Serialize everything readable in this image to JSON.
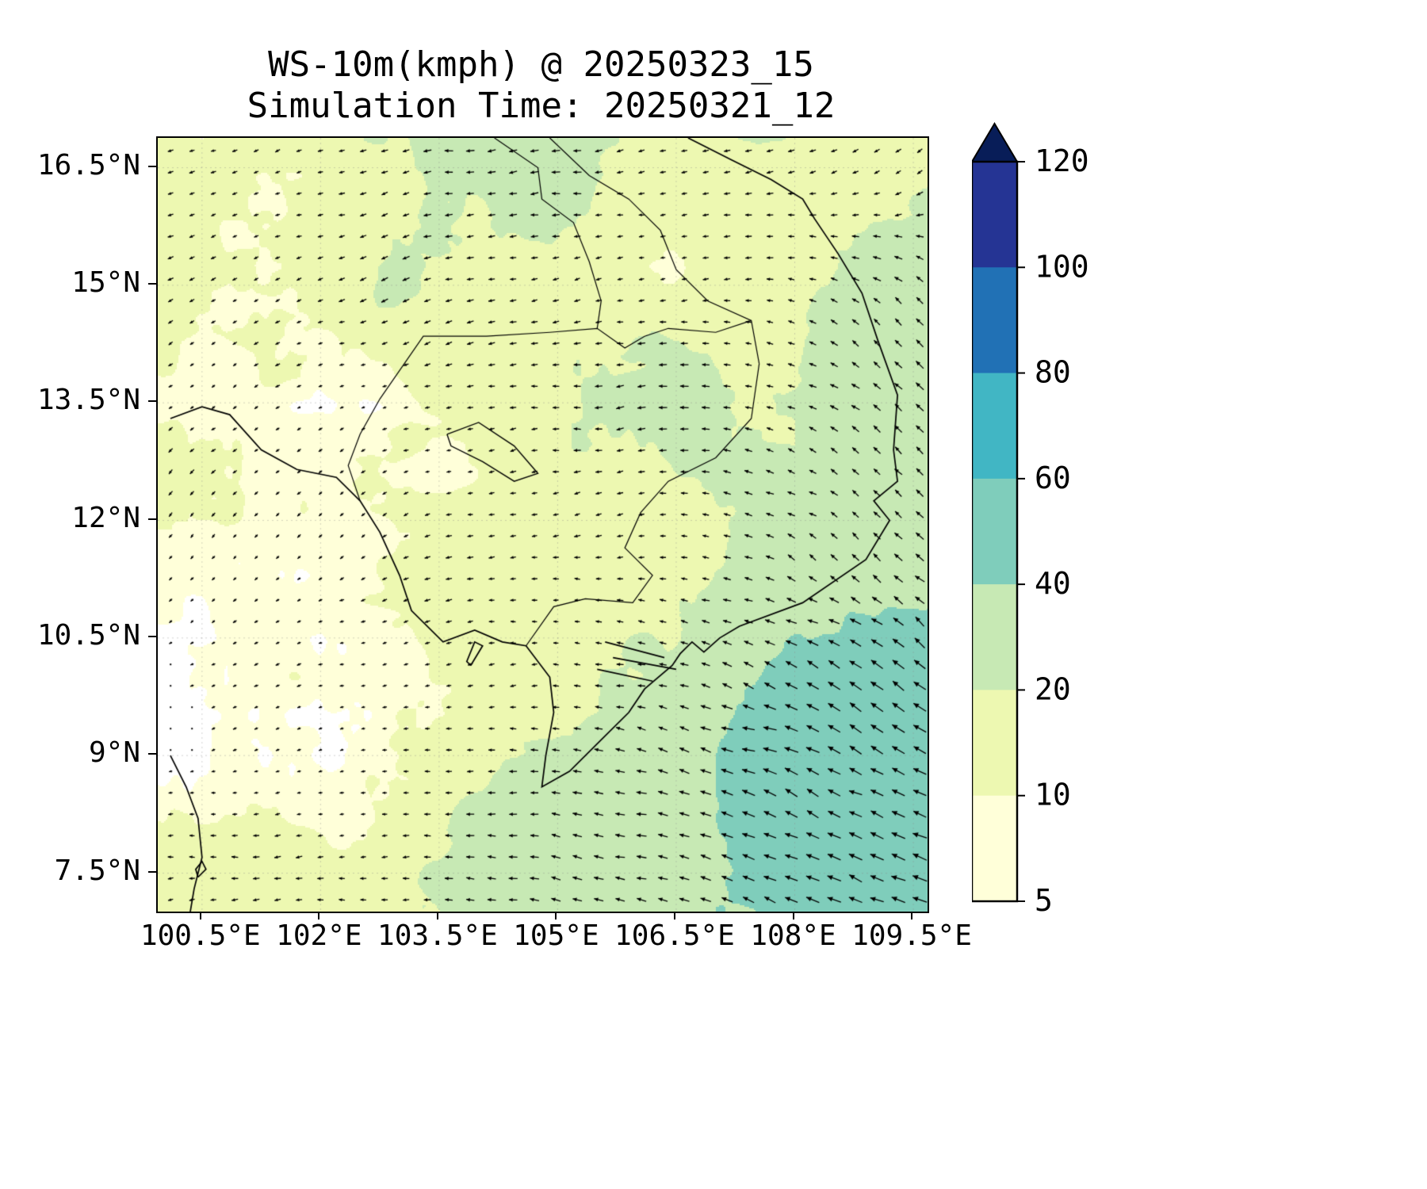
{
  "title": {
    "line1": "WS-10m(kmph) @ 20250323_15",
    "line2": "Simulation Time: 20250321_12"
  },
  "chart_data": {
    "type": "heatmap",
    "title": "WS-10m(kmph) @ 20250323_15",
    "subtitle": "Simulation Time: 20250321_12",
    "variable": "WS-10m",
    "units": "kmph",
    "valid_datetime_label": "20250323_15",
    "simulation_datetime_label": "20250321_12",
    "grid_on": true,
    "x_axis": {
      "tick_labels": [
        "100.5°E",
        "102°E",
        "103.5°E",
        "105°E",
        "106.5°E",
        "108°E",
        "109.5°E"
      ],
      "tick_lons": [
        100.5,
        102,
        103.5,
        105,
        106.5,
        108,
        109.5
      ],
      "range": [
        99.94,
        109.68
      ]
    },
    "y_axis": {
      "tick_labels": [
        "16.5°N",
        "15°N",
        "13.5°N",
        "12°N",
        "10.5°N",
        "9°N",
        "7.5°N"
      ],
      "tick_lats": [
        16.5,
        15,
        13.5,
        12,
        10.5,
        9,
        7.5
      ],
      "range": [
        7.01,
        16.88
      ]
    },
    "colorbar": {
      "position": "right",
      "tick_labels": [
        "5",
        "10",
        "20",
        "40",
        "60",
        "80",
        "100",
        "120"
      ],
      "levels": [
        5,
        10,
        20,
        40,
        60,
        80,
        100,
        120
      ],
      "interval_colors": [
        "#ffffd9",
        "#edf8b1",
        "#c7e9b4",
        "#7fcdbb",
        "#41b6c4",
        "#2171b5",
        "#253494"
      ],
      "extend_max_color": "#081d58",
      "below_min_color": "#ffffff",
      "outline_color": "#000000"
    },
    "wind_speed_grid_kmph": {
      "lons": [
        100.5,
        102,
        103.5,
        105,
        106.5,
        108,
        109.5
      ],
      "lats": [
        16.5,
        15,
        13.5,
        12,
        10.5,
        9,
        7.5
      ],
      "values": [
        [
          12,
          15,
          25,
          25,
          15,
          15,
          18
        ],
        [
          12,
          14,
          22,
          18,
          12,
          14,
          28
        ],
        [
          10,
          8,
          14,
          18,
          28,
          18,
          30
        ],
        [
          10,
          9,
          12,
          14,
          15,
          22,
          32
        ],
        [
          6,
          7,
          12,
          14,
          18,
          38,
          48
        ],
        [
          4,
          6,
          12,
          22,
          32,
          52,
          54
        ],
        [
          12,
          15,
          22,
          28,
          35,
          48,
          52
        ]
      ]
    },
    "wind_direction_toward_deg": {
      "convention": "0=east, 90=north, arrows point toward",
      "values": [
        [
          200,
          195,
          190,
          185,
          190,
          205,
          215
        ],
        [
          205,
          200,
          195,
          190,
          195,
          160,
          135
        ],
        [
          215,
          205,
          195,
          185,
          180,
          165,
          130
        ],
        [
          225,
          215,
          200,
          190,
          180,
          150,
          135
        ],
        [
          210,
          200,
          190,
          185,
          170,
          150,
          145
        ],
        [
          195,
          188,
          182,
          175,
          168,
          155,
          150
        ],
        [
          185,
          180,
          175,
          170,
          165,
          158,
          152
        ]
      ]
    },
    "quiver": {
      "arrow_color": "#000000",
      "length_scales_with": "wind speed"
    },
    "map_features": {
      "coastline_color": "#000000",
      "border_color": "#000000"
    }
  }
}
